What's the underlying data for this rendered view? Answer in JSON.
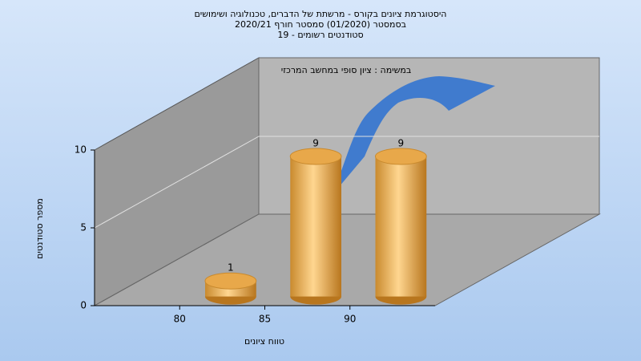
{
  "chart_data": {
    "type": "histogram",
    "title": [
      "היסטוגרמת ציונים בקורס - מרשתת של הדברים, טכנולוגיה ושימושים",
      "בסמסטר (01/2020) סמסטר חורף 2020/21",
      "סטודנטים רשומים - 19"
    ],
    "annotation": "במשימה : ציון סופי במחשב המרכזי",
    "x_label": "טווח ציונים",
    "y_label": "מספר סטודנטים",
    "bins": [
      80,
      85,
      90,
      95
    ],
    "values": [
      1,
      9,
      9
    ],
    "color": "#e8a84a",
    "xlim": [
      75,
      95
    ],
    "xticks": [
      80,
      85,
      90
    ],
    "ylim": [
      0,
      10
    ],
    "yticks": [
      0,
      5,
      10
    ],
    "grid": true
  }
}
